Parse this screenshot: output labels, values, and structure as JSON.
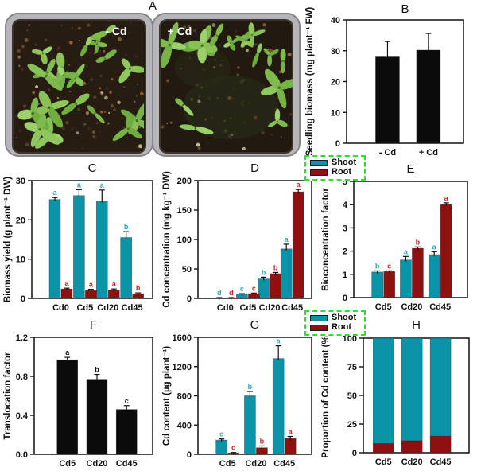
{
  "photo": {
    "panel_label": "A",
    "left_pot_label": "- Cd",
    "right_pot_label": "+ Cd"
  },
  "legend": {
    "items": [
      {
        "label": "Shoot",
        "color": "#0b93a8"
      },
      {
        "label": "Root",
        "color": "#8e1010"
      }
    ],
    "border_color": "#2ee02e"
  },
  "colors": {
    "shoot_bar": "#0b93a8",
    "root_bar": "#8e1010",
    "black_bar": "#0b0b0b",
    "shoot_letter": "#29a8cc",
    "root_letter": "#dd1f1f",
    "black_letter": "#111111",
    "axis": "#111111"
  },
  "chart_data": [
    {
      "id": "B",
      "panel_label": "B",
      "type": "bar",
      "title": "",
      "ylabel": "Seedling biomass (mg plant⁻¹ FW)",
      "ylim": [
        0,
        40
      ],
      "yticks": [
        0,
        10,
        20,
        30,
        40
      ],
      "ydecimals": 0,
      "categories": [
        "- Cd",
        "+ Cd"
      ],
      "series": [
        {
          "name": "Seedling biomass",
          "color": "#0b0b0b",
          "values": [
            28,
            30.2
          ],
          "errors": [
            5,
            5.4
          ],
          "letters": null,
          "letter_color": null
        }
      ]
    },
    {
      "id": "C",
      "panel_label": "C",
      "type": "grouped-bar",
      "title": "",
      "ylabel": "Biomass yield (g plant⁻¹ DW)",
      "ylim": [
        0,
        30
      ],
      "yticks": [
        0,
        10,
        20,
        30
      ],
      "ydecimals": 0,
      "categories": [
        "Cd0",
        "Cd5",
        "Cd20",
        "Cd45"
      ],
      "series": [
        {
          "name": "Shoot",
          "color": "#0b93a8",
          "values": [
            25.2,
            26.2,
            24.8,
            15.5
          ],
          "errors": [
            0.5,
            1.5,
            2.8,
            1.5
          ],
          "letters": [
            "a",
            "a",
            "a",
            "b"
          ],
          "letter_color": "#29a8cc"
        },
        {
          "name": "Root",
          "color": "#8e1010",
          "values": [
            2.4,
            2.0,
            2.1,
            1.2
          ],
          "errors": [
            0.2,
            0.3,
            0.3,
            0.2
          ],
          "letters": [
            "a",
            "a",
            "a",
            "b"
          ],
          "letter_color": "#dd1f1f"
        }
      ]
    },
    {
      "id": "D",
      "panel_label": "D",
      "type": "grouped-bar",
      "title": "",
      "ylabel": "Cd concentration (mg kg⁻¹ DW)",
      "ylim": [
        0,
        200
      ],
      "yticks": [
        0,
        50,
        100,
        150,
        200
      ],
      "ydecimals": 0,
      "categories": [
        "Cd0",
        "Cd5",
        "Cd20",
        "Cd45"
      ],
      "series": [
        {
          "name": "Shoot",
          "color": "#0b93a8",
          "values": [
            1,
            7,
            33,
            84
          ],
          "errors": [
            0.3,
            1,
            3,
            8
          ],
          "letters": [
            "d",
            "c",
            "b",
            "a"
          ],
          "letter_color": "#29a8cc"
        },
        {
          "name": "Root",
          "color": "#8e1010",
          "values": [
            1,
            8,
            42,
            181
          ],
          "errors": [
            0.3,
            1,
            2,
            4
          ],
          "letters": [
            "d",
            "c",
            "b",
            "a"
          ],
          "letter_color": "#dd1f1f"
        }
      ]
    },
    {
      "id": "E",
      "panel_label": "E",
      "type": "grouped-bar",
      "title": "",
      "ylabel": "Bioconcentration factor",
      "ylim": [
        0,
        5
      ],
      "yticks": [
        0,
        1,
        2,
        3,
        4,
        5
      ],
      "ydecimals": 0,
      "categories": [
        "Cd5",
        "Cd20",
        "Cd45"
      ],
      "series": [
        {
          "name": "Shoot",
          "color": "#0b93a8",
          "values": [
            1.1,
            1.62,
            1.85
          ],
          "errors": [
            0.05,
            0.15,
            0.12
          ],
          "letters": [
            "b",
            "a",
            "a"
          ],
          "letter_color": "#29a8cc"
        },
        {
          "name": "Root",
          "color": "#8e1010",
          "values": [
            1.12,
            2.12,
            4.0
          ],
          "errors": [
            0.03,
            0.06,
            0.08
          ],
          "letters": [
            "c",
            "b",
            "a"
          ],
          "letter_color": "#dd1f1f"
        }
      ]
    },
    {
      "id": "F",
      "panel_label": "F",
      "type": "bar",
      "title": "",
      "ylabel": "Translocation factor",
      "ylim": [
        0,
        1.2
      ],
      "yticks": [
        0.0,
        0.4,
        0.8,
        1.2
      ],
      "ydecimals": 1,
      "categories": [
        "Cd5",
        "Cd20",
        "Cd45"
      ],
      "series": [
        {
          "name": "Translocation factor",
          "color": "#0b0b0b",
          "values": [
            0.97,
            0.77,
            0.46
          ],
          "errors": [
            0.025,
            0.05,
            0.04
          ],
          "letters": [
            "a",
            "b",
            "c"
          ],
          "letter_color": "#111111"
        }
      ]
    },
    {
      "id": "G",
      "panel_label": "G",
      "type": "grouped-bar",
      "title": "",
      "ylabel": "Cd content (µg plant⁻¹)",
      "ylim": [
        0,
        1600
      ],
      "yticks": [
        0,
        400,
        800,
        1200,
        1600
      ],
      "ydecimals": 0,
      "categories": [
        "Cd5",
        "Cd20",
        "Cd45"
      ],
      "series": [
        {
          "name": "Shoot",
          "color": "#0b93a8",
          "values": [
            195,
            800,
            1310
          ],
          "errors": [
            15,
            60,
            175
          ],
          "letters": [
            "c",
            "b",
            "a"
          ],
          "letter_color": "#29a8cc"
        },
        {
          "name": "Root",
          "color": "#8e1010",
          "values": [
            20,
            90,
            215
          ],
          "errors": [
            5,
            25,
            30
          ],
          "letters": [
            "c",
            "b",
            "a"
          ],
          "letter_color": "#dd1f1f"
        }
      ]
    },
    {
      "id": "H",
      "panel_label": "H",
      "type": "stacked-bar",
      "title": "",
      "ylabel": "Proportion of Cd content (%)",
      "ylim": [
        0,
        100
      ],
      "yticks": [
        0,
        25,
        50,
        75,
        100
      ],
      "ydecimals": 0,
      "categories": [
        "Cd5",
        "Cd20",
        "Cd45"
      ],
      "series": [
        {
          "name": "Root",
          "color": "#8e1010",
          "values": [
            8,
            10.5,
            14.5
          ],
          "errors": null,
          "letters": null,
          "letter_color": null
        },
        {
          "name": "Shoot",
          "color": "#0b93a8",
          "values": [
            92,
            89.5,
            85.5
          ],
          "errors": null,
          "letters": null,
          "letter_color": null
        }
      ]
    }
  ]
}
